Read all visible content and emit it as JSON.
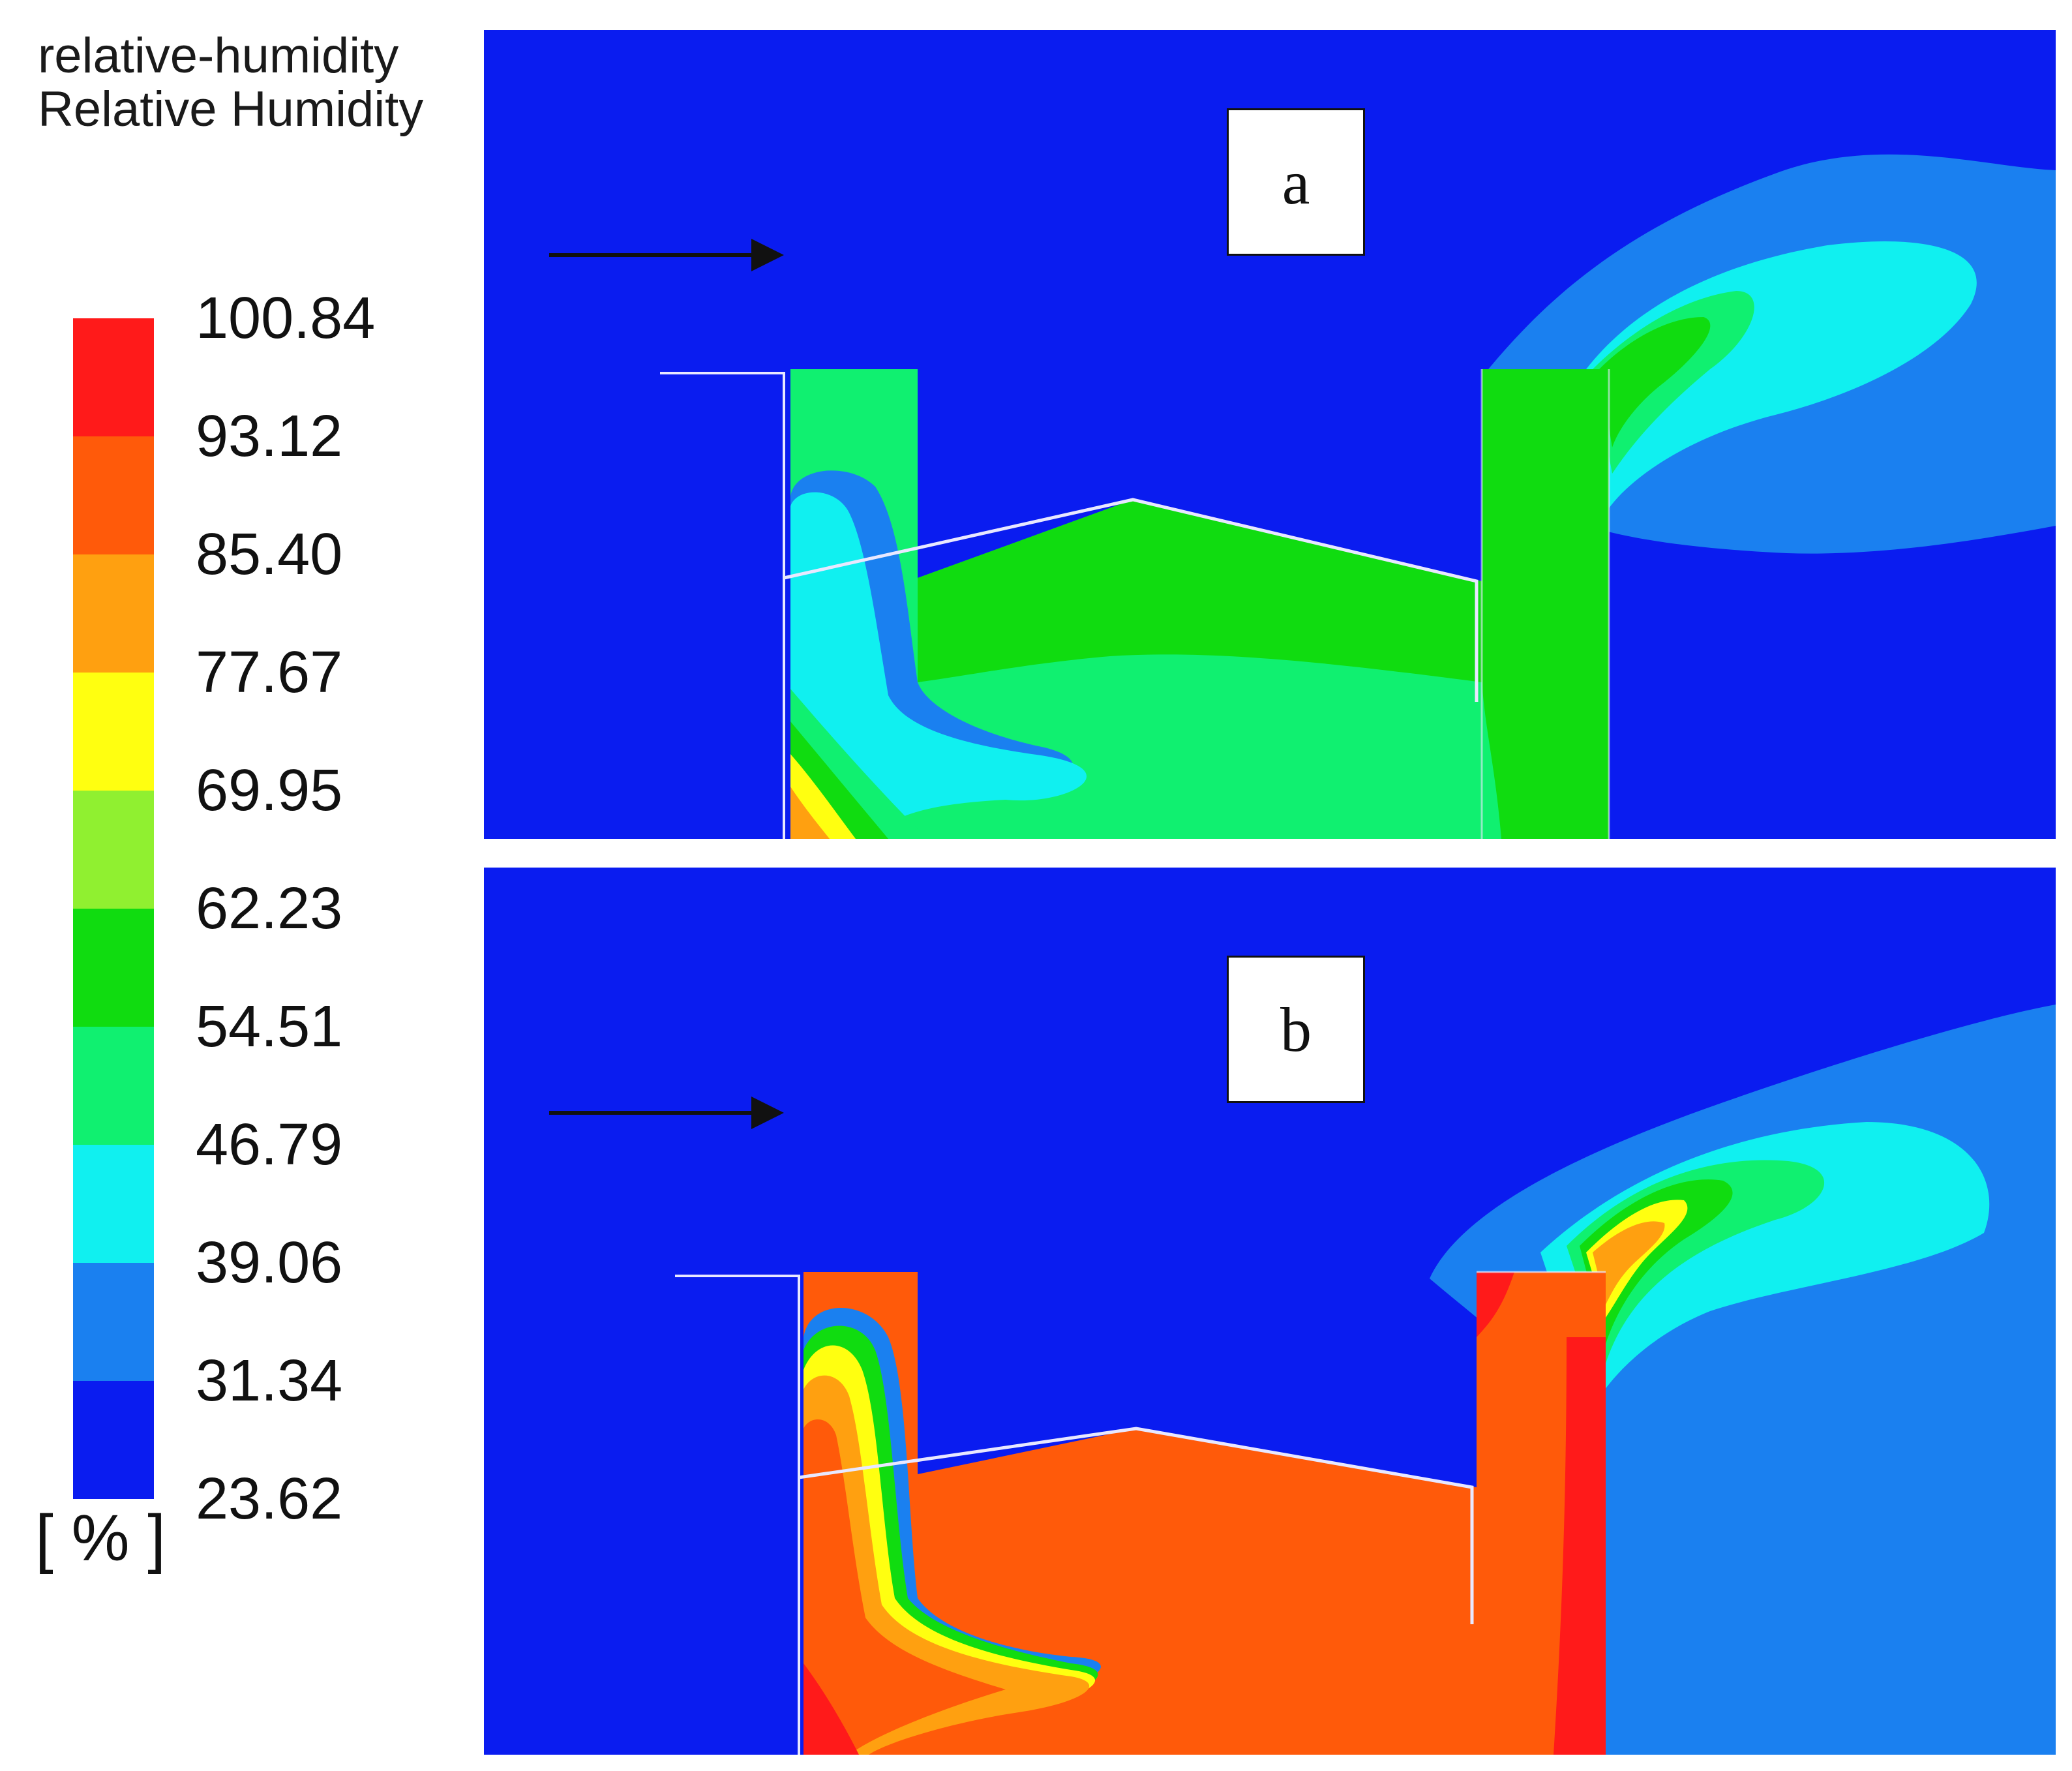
{
  "legend": {
    "title_line1": "relative-humidity",
    "title_line2": "Relative Humidity",
    "unit": "[ % ]",
    "ticks": [
      "100.84",
      "93.12",
      "85.40",
      "77.67",
      "69.95",
      "62.23",
      "54.51",
      "46.79",
      "39.06",
      "31.34",
      "23.62"
    ],
    "colors": [
      "#ff1a1a",
      "#ff5a0a",
      "#ffa010",
      "#ffff10",
      "#90f030",
      "#10dc10",
      "#10f070",
      "#10f0f0",
      "#1a80f0",
      "#0a1cf0"
    ]
  },
  "panels": [
    {
      "label": "a"
    },
    {
      "label": "b"
    }
  ]
}
